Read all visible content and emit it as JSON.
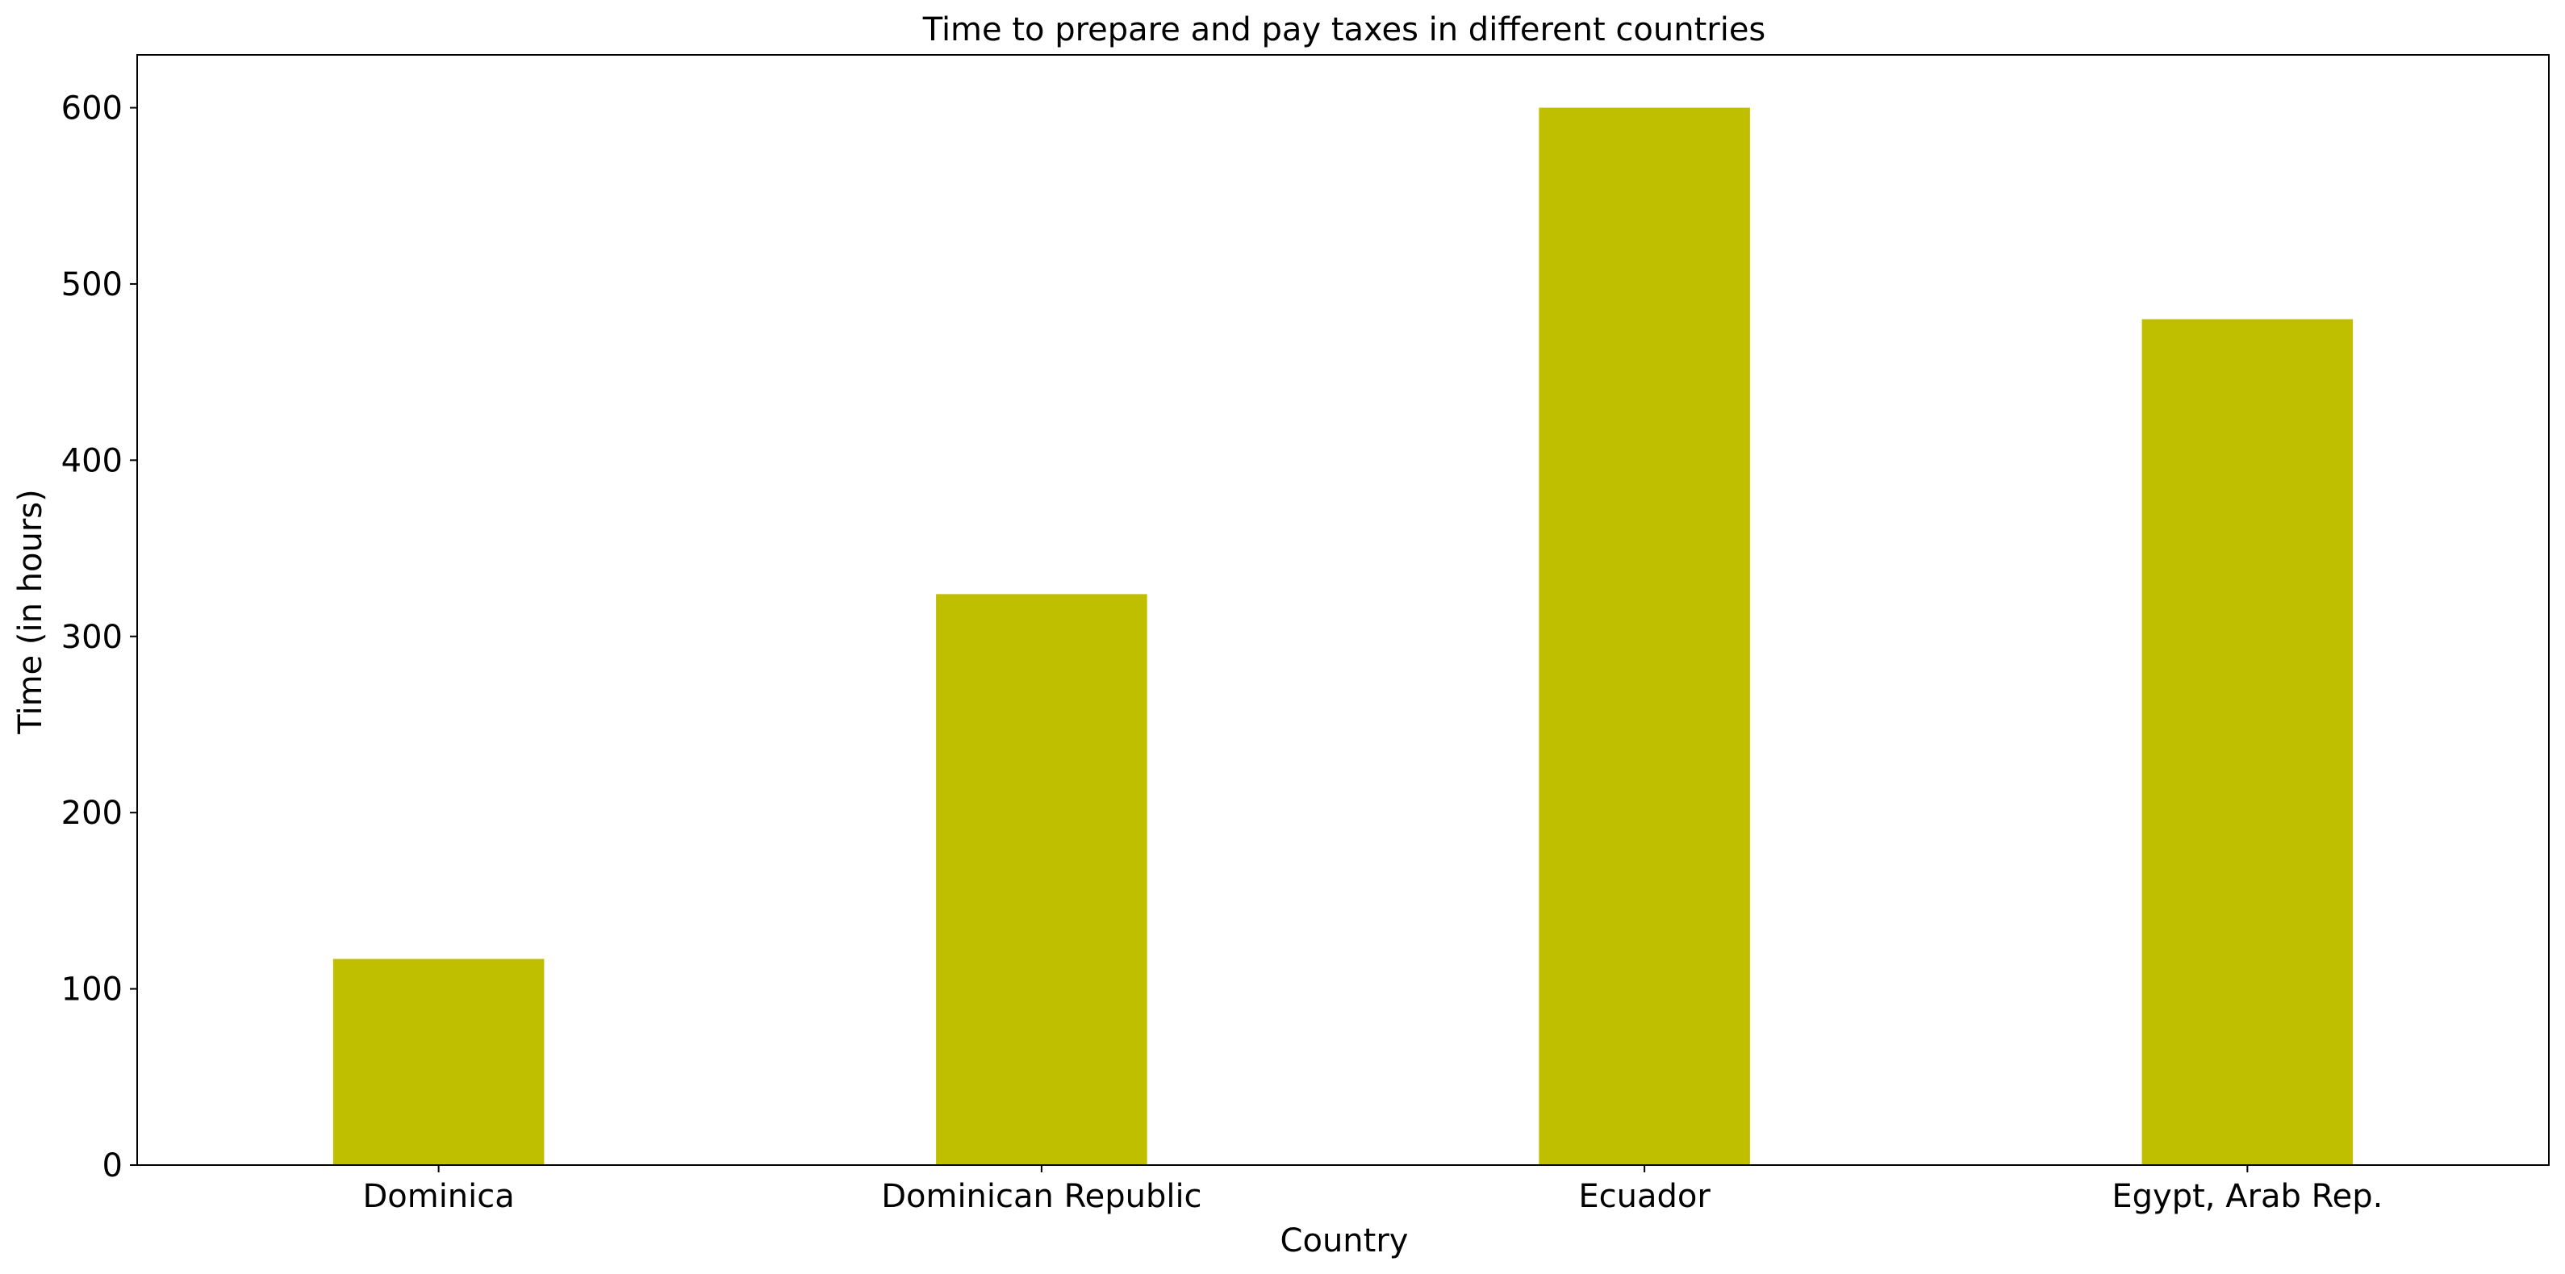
{
  "chart_data": {
    "type": "bar",
    "title": "Time to prepare and pay taxes in different countries",
    "xlabel": "Country",
    "ylabel": "Time (in hours)",
    "categories": [
      "Dominica",
      "Dominican Republic",
      "Ecuador",
      "Egypt, Arab Rep."
    ],
    "values": [
      117,
      324,
      600,
      480
    ],
    "ylim": [
      0,
      630
    ],
    "yticks": [
      0,
      100,
      200,
      300,
      400,
      500,
      600
    ],
    "grid": false,
    "legend": "none",
    "bar_color": "#bfbf00"
  }
}
